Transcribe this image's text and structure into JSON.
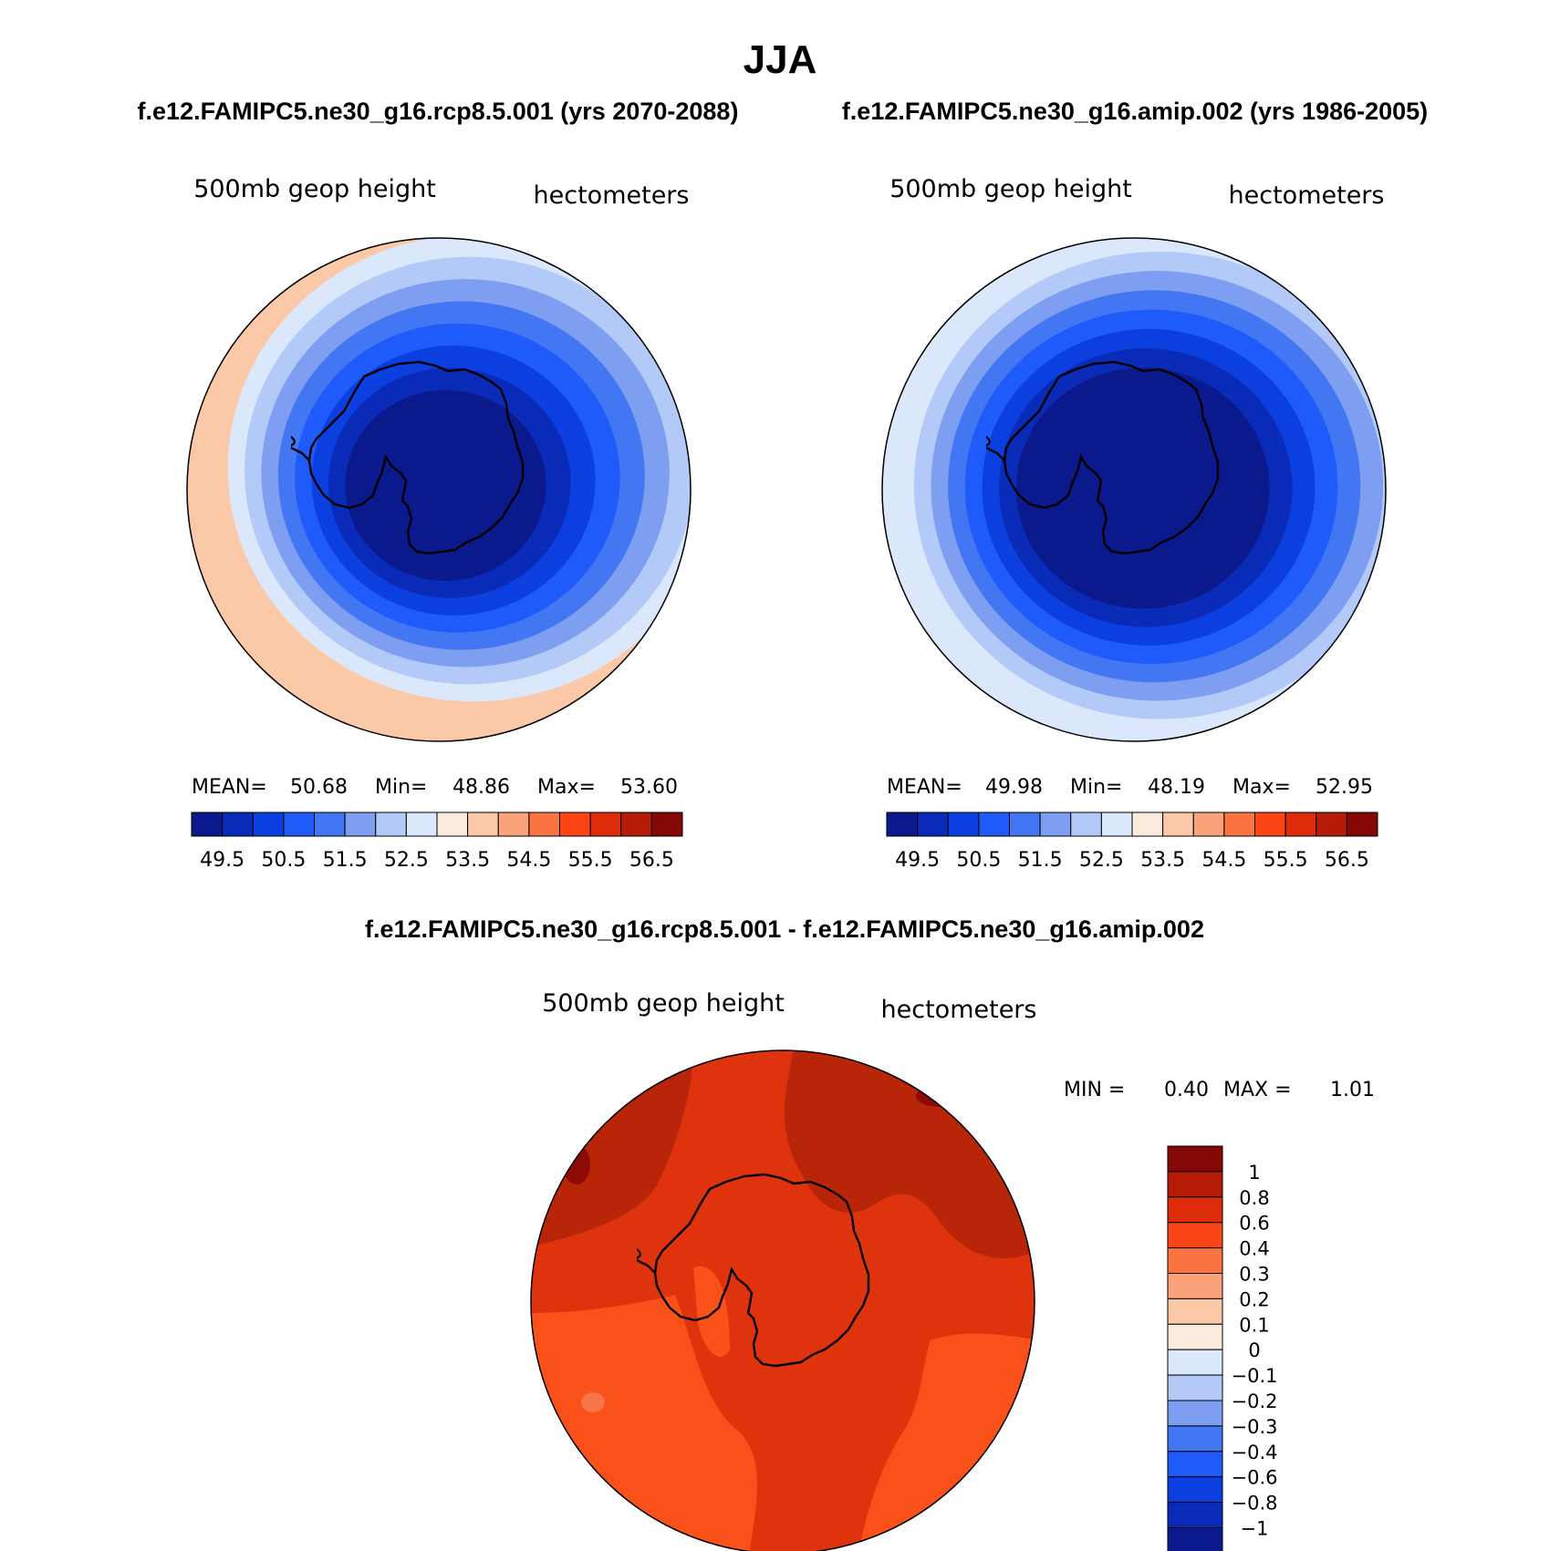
{
  "title": "JJA",
  "panels": {
    "left": {
      "caption": "f.e12.FAMIPC5.ne30_g16.rcp8.5.001 (yrs 2070-2088)",
      "variable": "500mb geop height",
      "units": "hectometers",
      "stats": {
        "mean_label": "MEAN=",
        "mean": "50.68",
        "min_label": "Min=",
        "min": "48.86",
        "max_label": "Max=",
        "max": "53.60"
      },
      "field": {
        "center_value": 48.9,
        "edge_value": 53.6,
        "ring_max": 53.2
      }
    },
    "right": {
      "caption": "f.e12.FAMIPC5.ne30_g16.amip.002 (yrs 1986-2005)",
      "variable": "500mb geop height",
      "units": "hectometers",
      "stats": {
        "mean_label": "MEAN=",
        "mean": "49.98",
        "min_label": "Min=",
        "min": "48.19",
        "max_label": "Max=",
        "max": "52.95"
      },
      "field": {
        "center_value": 48.2,
        "edge_value": 52.95,
        "ring_max": 52.8
      }
    },
    "diff": {
      "caption": "f.e12.FAMIPC5.ne30_g16.rcp8.5.001 - f.e12.FAMIPC5.ne30_g16.amip.002",
      "variable": "500mb geop height",
      "units": "hectometers",
      "stats": {
        "min_label": "MIN =",
        "min": "0.40",
        "max_label": "MAX =",
        "max": "1.01"
      }
    }
  },
  "colorbar_top": {
    "colors": [
      "#0a1a8c",
      "#0a2bb8",
      "#0b3fe0",
      "#1f5bfb",
      "#4276f2",
      "#7d9ef1",
      "#b3c9f7",
      "#dbe8fb",
      "#fcebdc",
      "#fcc9a8",
      "#fba27b",
      "#fa7441",
      "#fa4516",
      "#de2b0a",
      "#b51c08",
      "#850806"
    ],
    "tick_labels": [
      "49.5",
      "50.5",
      "51.5",
      "52.5",
      "53.5",
      "54.5",
      "55.5",
      "56.5"
    ],
    "levels": [
      49,
      49.5,
      50,
      50.5,
      51,
      51.5,
      52,
      52.5,
      53,
      53.5,
      54,
      54.5,
      55,
      55.5,
      56,
      56.5,
      57
    ]
  },
  "colorbar_diff": {
    "colors": [
      "#0a1a8c",
      "#0a2bb8",
      "#0b3fe0",
      "#1f5bfb",
      "#4276f2",
      "#7d9ef1",
      "#b3c9f7",
      "#dbe8fb",
      "#fcebdc",
      "#fcc9a8",
      "#fba27b",
      "#fa7441",
      "#fa4516",
      "#de2b0a",
      "#b51c08",
      "#850806"
    ],
    "tick_labels": [
      "1",
      "0.8",
      "0.6",
      "0.4",
      "0.3",
      "0.2",
      "0.1",
      "0",
      "−0.1",
      "−0.2",
      "−0.3",
      "−0.4",
      "−0.6",
      "−0.8",
      "−1"
    ]
  },
  "diff_colors": {
    "base": "#de330c",
    "orange": "#f95119",
    "dark": "#b82508",
    "max": "#8d0a06",
    "light": "#f9754a"
  }
}
